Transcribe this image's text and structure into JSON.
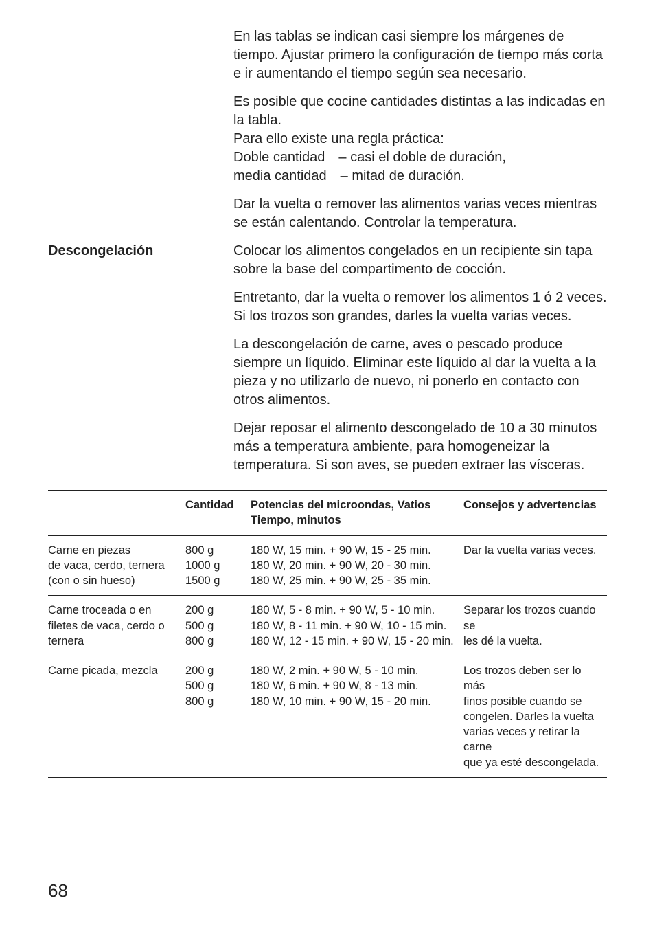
{
  "intro": {
    "paragraphs": [
      "En las tablas se indican casi siempre los márgenes de tiempo. Ajustar primero la configuración de tiempo más corta e ir aumentando el tiempo según sea necesario.",
      "Es posible que cocine cantidades distintas a las indicadas en la tabla.\nPara ello existe una regla práctica:\nDoble cantidad – casi el doble de duración,\nmedia cantidad – mitad de duración.",
      "Dar la vuelta o remover las alimentos varias veces mientras se están calentando. Controlar la temperatura."
    ]
  },
  "section": {
    "heading": "Descongelación",
    "paragraphs": [
      "Colocar los alimentos congelados en un recipiente sin tapa sobre la base del compartimento de cocción.",
      "Entretanto, dar la vuelta o remover los alimentos 1 ó 2 veces. Si los trozos son grandes, darles la vuelta varias veces.",
      "La descongelación de carne, aves o pescado produce siempre un líquido. Eliminar este líquido al dar la vuelta a la pieza y no utilizarlo de nuevo, ni ponerlo en contacto con otros alimentos.",
      "Dejar reposar el alimento descongelado de 10 a 30 minutos más a temperatura ambiente, para homogeneizar la temperatura. Si son aves, se pueden extraer las vísceras."
    ]
  },
  "table": {
    "headers": {
      "col1": "",
      "col2": "Cantidad",
      "col3": "Potencias del microondas, Vatios\nTiempo, minutos",
      "col4": "Consejos y advertencias"
    },
    "rows": [
      {
        "c1": "Carne en piezas\nde vaca, cerdo, ternera\n(con o sin hueso)",
        "c2": "800 g\n1000 g\n1500 g",
        "c3": "180 W, 15 min. + 90 W, 15 - 25 min.\n180 W, 20 min. + 90 W, 20 - 30 min.\n180 W, 25 min. + 90 W, 25 - 35 min.",
        "c4": "Dar la vuelta varias veces."
      },
      {
        "c1": "Carne troceada o en\nfiletes de vaca, cerdo o\nternera",
        "c2": "200 g\n500 g\n800 g",
        "c3": "180 W, 5 - 8 min. + 90 W, 5 - 10 min.\n180 W, 8 - 11 min. + 90 W, 10 - 15 min.\n180 W, 12 - 15 min. + 90 W, 15 - 20 min.",
        "c4": "Separar los trozos cuando se\nles dé la vuelta."
      },
      {
        "c1": "Carne picada, mezcla",
        "c2": "200 g\n500 g\n800 g",
        "c3": "180 W, 2 min. + 90 W, 5 - 10 min.\n180 W, 6 min. + 90 W, 8 - 13 min.\n180 W, 10 min. + 90 W, 15 - 20 min.",
        "c4": "Los trozos deben ser lo más\nfinos posible cuando se\ncongelen. Darles la vuelta\nvarias veces y retirar la carne\nque ya esté descongelada."
      }
    ]
  },
  "page_number": "68"
}
